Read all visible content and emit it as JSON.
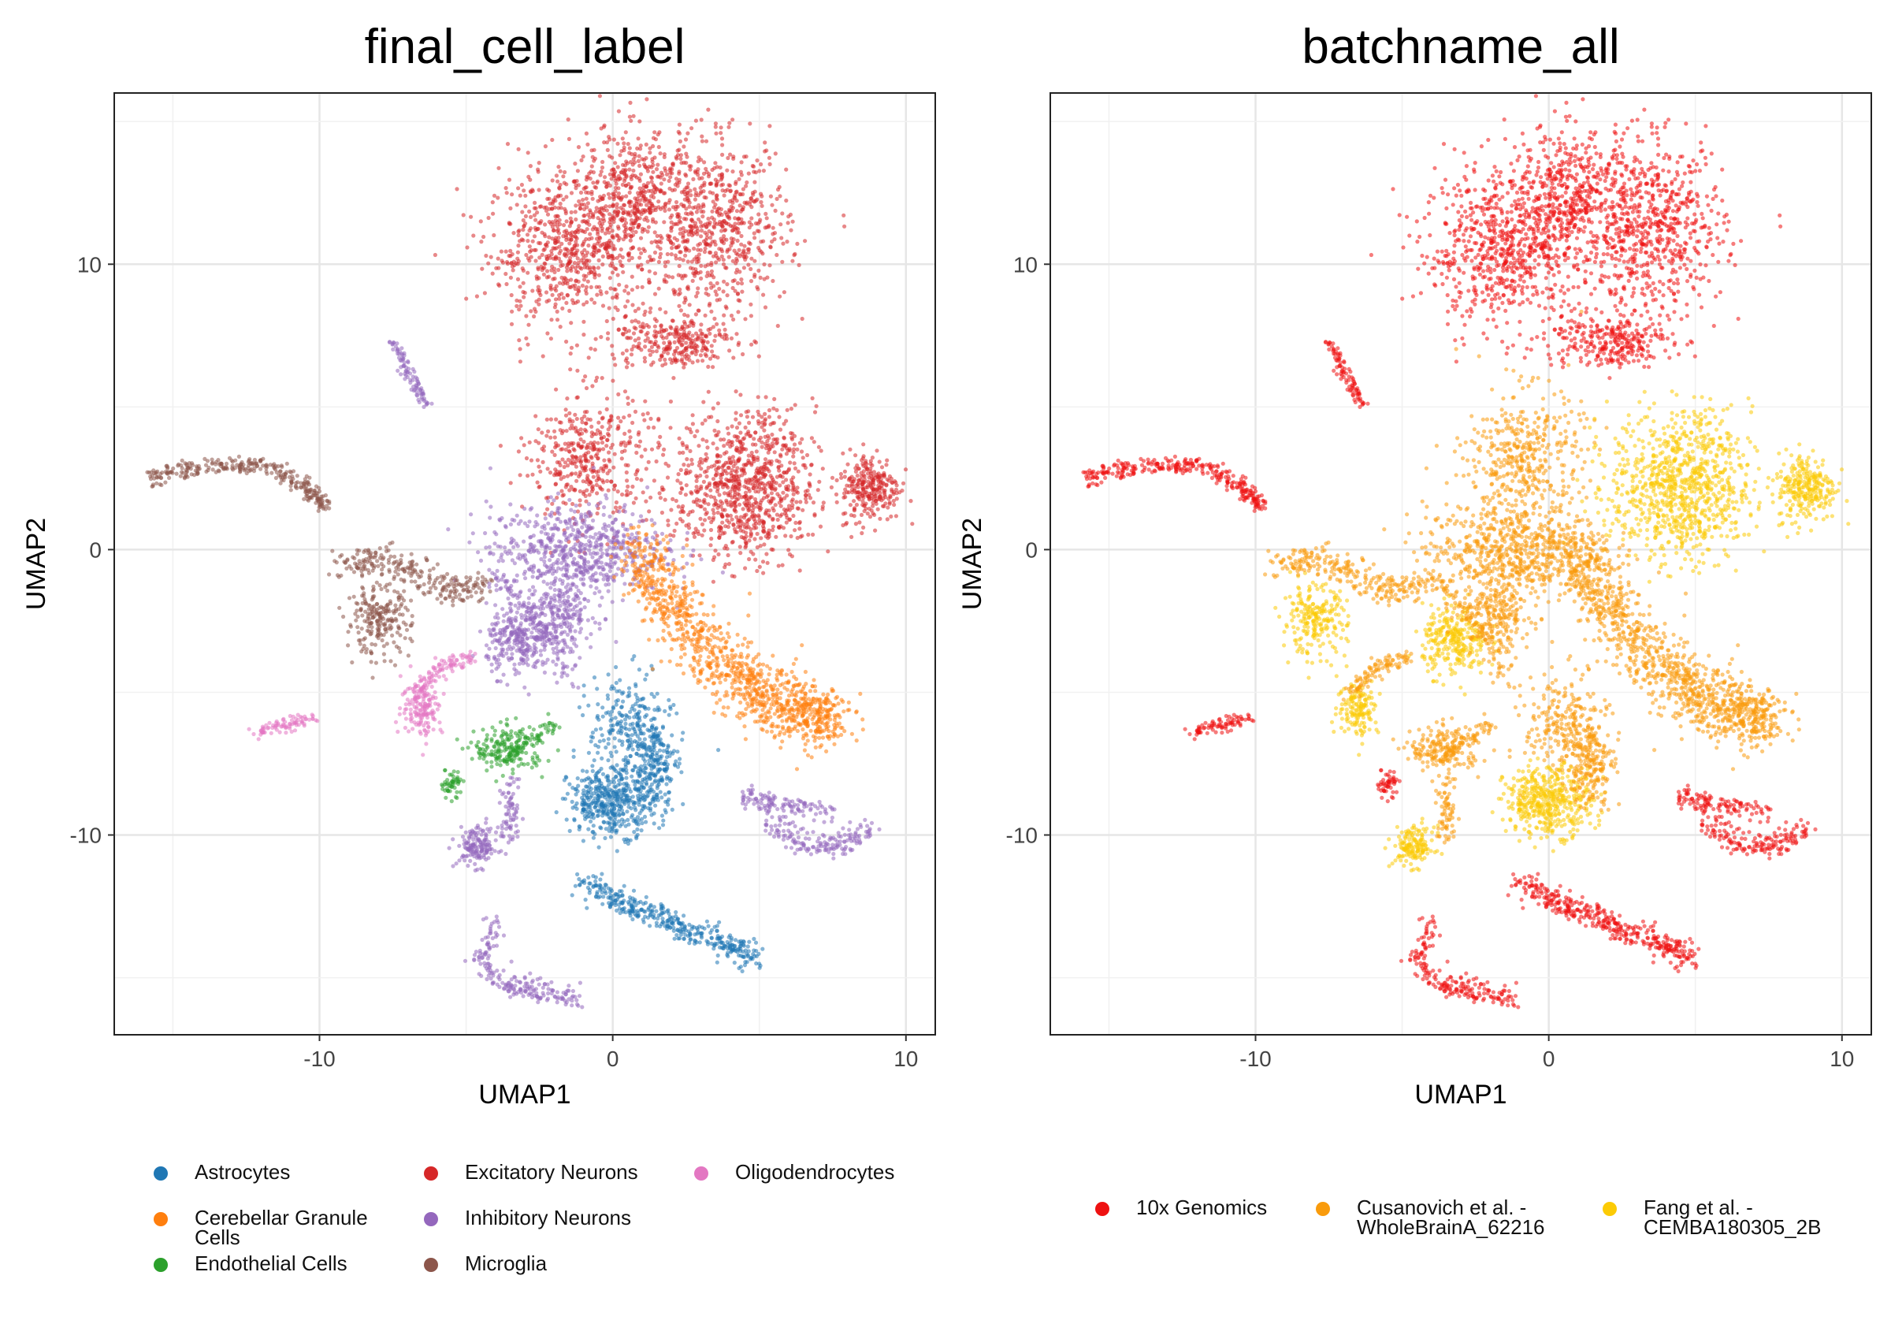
{
  "chart_data": [
    {
      "type": "scatter",
      "title": "final_cell_label",
      "xlabel": "UMAP1",
      "ylabel": "UMAP2",
      "xlim": [
        -17,
        11
      ],
      "ylim": [
        -17,
        16
      ],
      "x_ticks": [
        -10,
        0,
        10
      ],
      "y_ticks": [
        -10,
        0,
        10
      ],
      "x_tick_labels": [
        "-10",
        "0",
        "10"
      ],
      "y_tick_labels": [
        "-10",
        "0",
        "10"
      ],
      "grid": true,
      "legend_position": "bottom",
      "series": [
        {
          "name": "Astrocytes",
          "color": "#1f77b4"
        },
        {
          "name": "Cerebellar Granule Cells",
          "color": "#ff7f0e"
        },
        {
          "name": "Endothelial Cells",
          "color": "#2ca02c"
        },
        {
          "name": "Excitatory Neurons",
          "color": "#d62728"
        },
        {
          "name": "Inhibitory Neurons",
          "color": "#9467bd"
        },
        {
          "name": "Microglia",
          "color": "#8c564b"
        },
        {
          "name": "Oligodendrocytes",
          "color": "#e377c2"
        }
      ]
    },
    {
      "type": "scatter",
      "title": "batchname_all",
      "xlabel": "UMAP1",
      "ylabel": "UMAP2",
      "xlim": [
        -17,
        11
      ],
      "ylim": [
        -17,
        16
      ],
      "x_ticks": [
        -10,
        0,
        10
      ],
      "y_ticks": [
        -10,
        0,
        10
      ],
      "x_tick_labels": [
        "-10",
        "0",
        "10"
      ],
      "y_tick_labels": [
        "-10",
        "0",
        "10"
      ],
      "grid": true,
      "legend_position": "bottom",
      "series": [
        {
          "name": "10x Genomics",
          "color": "#ee1111"
        },
        {
          "name": "Cusanovich et al. - WholeBrainA_62216",
          "color": "#f99b0c"
        },
        {
          "name": "Fang et al. - CEMBA180305_2B",
          "color": "#fccb05"
        }
      ]
    }
  ],
  "clusters": [
    {
      "name": "excitatory-top-left",
      "cell": "Excitatory Neurons",
      "batch": "10x Genomics",
      "cx": -1.5,
      "cy": 10.5,
      "sx": 1.4,
      "sy": 1.3,
      "n": 700
    },
    {
      "name": "excitatory-top-mid",
      "cell": "Excitatory Neurons",
      "batch": "10x Genomics",
      "cx": 0.8,
      "cy": 12.5,
      "sx": 1.1,
      "sy": 1.2,
      "n": 450
    },
    {
      "name": "excitatory-top-right",
      "cell": "Excitatory Neurons",
      "batch": "10x Genomics",
      "cx": 3.6,
      "cy": 11.2,
      "sx": 1.2,
      "sy": 1.5,
      "n": 650
    },
    {
      "name": "excitatory-small",
      "cell": "Excitatory Neurons",
      "batch": "10x Genomics",
      "cx": 2.0,
      "cy": 7.3,
      "sx": 1.1,
      "sy": 0.45,
      "n": 280
    },
    {
      "name": "excitatory-mid-arms",
      "cell": "Excitatory Neurons",
      "batch": "Cusanovich et al. - WholeBrainA_62216",
      "cx": -0.8,
      "cy": 3.2,
      "sx": 1.0,
      "sy": 1.2,
      "n": 420
    },
    {
      "name": "excitatory-right-big",
      "cell": "Excitatory Neurons",
      "batch": "Fang et al. - CEMBA180305_2B",
      "cx": 4.5,
      "cy": 2.2,
      "sx": 1.2,
      "sy": 1.3,
      "n": 900
    },
    {
      "name": "excitatory-far-right",
      "cell": "Excitatory Neurons",
      "batch": "Fang et al. - CEMBA180305_2B",
      "cx": 8.8,
      "cy": 2.2,
      "sx": 0.5,
      "sy": 0.6,
      "n": 260
    },
    {
      "name": "inhibitory-center",
      "cell": "Inhibitory Neurons",
      "batch": "Cusanovich et al. - WholeBrainA_62216",
      "cx": -1.2,
      "cy": 0.0,
      "sx": 1.5,
      "sy": 0.8,
      "n": 650
    },
    {
      "name": "inhibitory-left-blob",
      "cell": "Inhibitory Neurons",
      "batch": "Fang et al. - CEMBA180305_2B",
      "cx": -3.2,
      "cy": -3.2,
      "sx": 0.55,
      "sy": 0.6,
      "n": 280
    },
    {
      "name": "inhibitory-mid-blob",
      "cell": "Inhibitory Neurons",
      "batch": "Cusanovich et al. - WholeBrainA_62216",
      "cx": -1.8,
      "cy": -2.2,
      "sx": 0.6,
      "sy": 0.6,
      "n": 200
    },
    {
      "name": "inhibitory-low-blob",
      "cell": "Inhibitory Neurons",
      "batch": "Fang et al. - CEMBA180305_2B",
      "cx": -4.6,
      "cy": -10.4,
      "sx": 0.35,
      "sy": 0.35,
      "n": 150
    },
    {
      "name": "astro-upper",
      "cell": "Astrocytes",
      "batch": "Cusanovich et al. - WholeBrainA_62216",
      "cx": 0.6,
      "cy": -6.2,
      "sx": 0.7,
      "sy": 0.9,
      "n": 250
    },
    {
      "name": "astro-blob",
      "cell": "Astrocytes",
      "batch": "Fang et al. - CEMBA180305_2B",
      "cx": 0.0,
      "cy": -8.8,
      "sx": 0.75,
      "sy": 0.6,
      "n": 450
    },
    {
      "name": "astro-right-arm",
      "cell": "Astrocytes",
      "batch": "Cusanovich et al. - WholeBrainA_62216",
      "cx": 1.4,
      "cy": -7.6,
      "sx": 0.4,
      "sy": 0.7,
      "n": 180
    },
    {
      "name": "microglia-blob",
      "cell": "Microglia",
      "batch": "Fang et al. - CEMBA180305_2B",
      "cx": -8.0,
      "cy": -2.5,
      "sx": 0.55,
      "sy": 0.6,
      "n": 220
    },
    {
      "name": "oligo-blob",
      "cell": "Oligodendrocytes",
      "batch": "Fang et al. - CEMBA180305_2B",
      "cx": -6.5,
      "cy": -5.5,
      "sx": 0.35,
      "sy": 0.5,
      "n": 150
    },
    {
      "name": "endo-blob",
      "cell": "Endothelial Cells",
      "batch": "Cusanovich et al. - WholeBrainA_62216",
      "cx": -3.5,
      "cy": -7.0,
      "sx": 0.6,
      "sy": 0.4,
      "n": 180
    },
    {
      "name": "endo-small",
      "cell": "Endothelial Cells",
      "batch": "10x Genomics",
      "cx": -5.5,
      "cy": -8.2,
      "sx": 0.2,
      "sy": 0.25,
      "n": 50
    }
  ],
  "curves": [
    {
      "name": "cgc-band",
      "cell": "Cerebellar Granule Cells",
      "batch": "Cusanovich et al. - WholeBrainA_62216",
      "pts": [
        [
          0.8,
          0.0
        ],
        [
          2.0,
          -2.0
        ],
        [
          3.5,
          -3.8
        ],
        [
          5.0,
          -5.0
        ],
        [
          6.5,
          -5.7
        ],
        [
          7.5,
          -6.0
        ]
      ],
      "w": 0.55,
      "n": 1100
    },
    {
      "name": "microglia-arc",
      "cell": "Microglia",
      "batch": "10x Genomics",
      "pts": [
        [
          -15.8,
          2.5
        ],
        [
          -14,
          2.9
        ],
        [
          -12,
          3.0
        ],
        [
          -10.5,
          2.2
        ],
        [
          -9.8,
          1.5
        ]
      ],
      "w": 0.15,
      "n": 300
    },
    {
      "name": "microglia-branch",
      "cell": "Microglia",
      "batch": "Cusanovich et al. - WholeBrainA_62216",
      "pts": [
        [
          -9.5,
          -0.6
        ],
        [
          -8,
          -0.3
        ],
        [
          -6.8,
          -0.8
        ],
        [
          -5.5,
          -1.5
        ],
        [
          -4.5,
          -1.3
        ]
      ],
      "w": 0.25,
      "n": 250
    },
    {
      "name": "oligo-arm",
      "cell": "Oligodendrocytes",
      "batch": "Cusanovich et al. - WholeBrainA_62216",
      "pts": [
        [
          -6.8,
          -5.0
        ],
        [
          -5.8,
          -4.1
        ],
        [
          -4.8,
          -3.8
        ]
      ],
      "w": 0.15,
      "n": 100
    },
    {
      "name": "oligo-small",
      "cell": "Oligodendrocytes",
      "batch": "10x Genomics",
      "pts": [
        [
          -12.2,
          -6.4
        ],
        [
          -11,
          -6.1
        ],
        [
          -10.2,
          -5.9
        ]
      ],
      "w": 0.12,
      "n": 80
    },
    {
      "name": "inhib-diag",
      "cell": "Inhibitory Neurons",
      "batch": "10x Genomics",
      "pts": [
        [
          -7.5,
          7.3
        ],
        [
          -7.0,
          6.2
        ],
        [
          -6.3,
          5.0
        ]
      ],
      "w": 0.12,
      "n": 90
    },
    {
      "name": "inhib-low-arc",
      "cell": "Inhibitory Neurons",
      "batch": "10x Genomics",
      "pts": [
        [
          -4.0,
          -13.0
        ],
        [
          -4.5,
          -14.5
        ],
        [
          -3.5,
          -15.3
        ],
        [
          -2.5,
          -15.5
        ],
        [
          -1.2,
          -15.8
        ]
      ],
      "w": 0.2,
      "n": 200
    },
    {
      "name": "inhib-right-top",
      "cell": "Inhibitory Neurons",
      "batch": "10x Genomics",
      "pts": [
        [
          4.5,
          -8.6
        ],
        [
          5.8,
          -9.0
        ],
        [
          7.5,
          -9.2
        ]
      ],
      "w": 0.18,
      "n": 120
    },
    {
      "name": "inhib-right-low",
      "cell": "Inhibitory Neurons",
      "batch": "10x Genomics",
      "pts": [
        [
          5.2,
          -9.5
        ],
        [
          6.5,
          -10.3
        ],
        [
          7.8,
          -10.4
        ],
        [
          8.8,
          -9.8
        ]
      ],
      "w": 0.2,
      "n": 160
    },
    {
      "name": "astro-lower-band",
      "cell": "Astrocytes",
      "batch": "10x Genomics",
      "pts": [
        [
          -1.0,
          -11.8
        ],
        [
          1.0,
          -12.6
        ],
        [
          3.0,
          -13.5
        ],
        [
          5.0,
          -14.3
        ]
      ],
      "w": 0.25,
      "n": 380
    },
    {
      "name": "inhib-tail",
      "cell": "Inhibitory Neurons",
      "batch": "Cusanovich et al. - WholeBrainA_62216",
      "pts": [
        [
          -3.5,
          -8.0
        ],
        [
          -3.4,
          -9.2
        ],
        [
          -3.6,
          -10.2
        ]
      ],
      "w": 0.15,
      "n": 70
    },
    {
      "name": "inhib-strand",
      "cell": "Inhibitory Neurons",
      "batch": "Cusanovich et al. - WholeBrainA_62216",
      "pts": [
        [
          -4.0,
          -1.0
        ],
        [
          -3.0,
          -2.0
        ],
        [
          -2.0,
          -3.0
        ],
        [
          -1.5,
          -4.5
        ]
      ],
      "w": 0.2,
      "n": 120
    },
    {
      "name": "endo-strand",
      "cell": "Endothelial Cells",
      "batch": "Cusanovich et al. - WholeBrainA_62216",
      "pts": [
        [
          -4.5,
          -7.2
        ],
        [
          -3.0,
          -6.8
        ],
        [
          -1.8,
          -6.0
        ]
      ],
      "w": 0.12,
      "n": 60
    }
  ]
}
